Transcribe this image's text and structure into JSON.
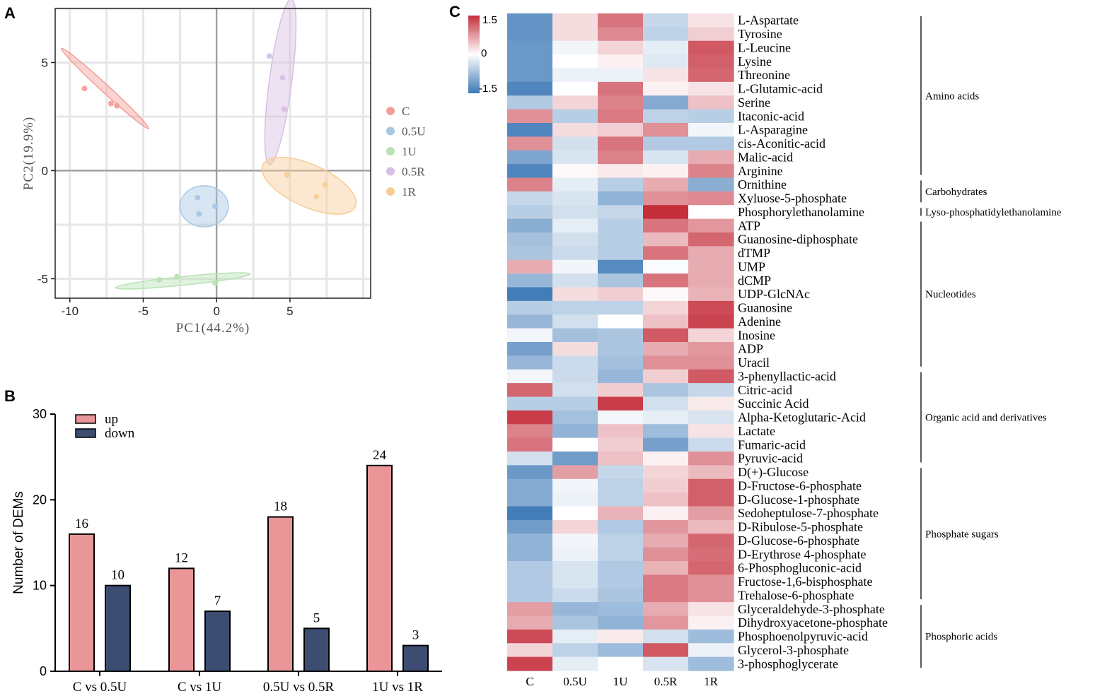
{
  "panels": {
    "a": "A",
    "b": "B",
    "c": "C"
  },
  "chart_data": [
    {
      "type": "scatter",
      "panel": "A",
      "title": "",
      "xlabel": "PC1(44.2%)",
      "ylabel": "PC2(19.9%)",
      "xlim": [
        -11,
        10.5
      ],
      "ylim": [
        -5.9,
        7.5
      ],
      "xticks": [
        -10,
        -5,
        0,
        5
      ],
      "yticks": [
        -5,
        0,
        5
      ],
      "grid": true,
      "legend": "right",
      "series": [
        {
          "name": "C",
          "color": "#f3a09a",
          "points": [
            {
              "x": -9.0,
              "y": 3.8
            },
            {
              "x": -7.2,
              "y": 3.1
            },
            {
              "x": -6.8,
              "y": 3.0
            }
          ],
          "ellipse": {
            "cx": -7.6,
            "cy": 3.8,
            "rx": 3.5,
            "ry": 0.2,
            "angle_deg": -32
          }
        },
        {
          "name": "0.5U",
          "color": "#a9c7e4",
          "points": [
            {
              "x": -1.3,
              "y": -1.25
            },
            {
              "x": -1.2,
              "y": -2.0
            },
            {
              "x": -0.1,
              "y": -1.65
            }
          ],
          "ellipse": {
            "cx": -0.85,
            "cy": -1.65,
            "rx": 1.65,
            "ry": 0.95,
            "angle_deg": 0
          }
        },
        {
          "name": "1U",
          "color": "#b9e3b3",
          "points": [
            {
              "x": -3.9,
              "y": -5.05
            },
            {
              "x": -2.7,
              "y": -4.9
            },
            {
              "x": -0.1,
              "y": -5.2
            }
          ],
          "ellipse": {
            "cx": -2.3,
            "cy": -5.1,
            "rx": 4.6,
            "ry": 0.2,
            "angle_deg": 4
          }
        },
        {
          "name": "0.5R",
          "color": "#d7bfe3",
          "points": [
            {
              "x": 3.6,
              "y": 5.3
            },
            {
              "x": 4.5,
              "y": 4.3
            },
            {
              "x": 4.6,
              "y": 2.85
            }
          ],
          "ellipse": {
            "cx": 4.35,
            "cy": 4.1,
            "rx": 3.9,
            "ry": 0.75,
            "angle_deg": 79
          }
        },
        {
          "name": "1R",
          "color": "#f8cc96",
          "points": [
            {
              "x": 4.8,
              "y": -0.2
            },
            {
              "x": 6.8,
              "y": -1.2
            },
            {
              "x": 7.4,
              "y": -0.65
            }
          ],
          "ellipse": {
            "cx": 6.3,
            "cy": -0.7,
            "rx": 3.3,
            "ry": 1.0,
            "angle_deg": -17
          }
        }
      ]
    },
    {
      "type": "bar",
      "panel": "B",
      "title": "",
      "xlabel": "",
      "ylabel": "Number of DEMs",
      "ylim": [
        0,
        30
      ],
      "yticks": [
        0,
        10,
        20,
        30
      ],
      "legend": "top-left",
      "categories": [
        "C vs 0.5U",
        "C vs 1U",
        "0.5U vs 0.5R",
        "1U vs 1R"
      ],
      "series": [
        {
          "name": "up",
          "color": "#ea9698",
          "values": [
            16,
            12,
            18,
            24
          ]
        },
        {
          "name": "down",
          "color": "#3d4d72",
          "values": [
            10,
            7,
            5,
            3
          ]
        }
      ]
    },
    {
      "type": "heatmap",
      "panel": "C",
      "title": "",
      "columns": [
        "C",
        "0.5U",
        "1U",
        "0.5R",
        "1R"
      ],
      "colorbar": {
        "min": -1.5,
        "max": 1.5,
        "ticks": [
          "1.5",
          "0",
          "-1.5"
        ],
        "low_color": "#3d78b6",
        "mid_color": "#ffffff",
        "high_color": "#c42f3c"
      },
      "rows": [
        {
          "name": "L-Aspartate",
          "values": [
            -1.2,
            0.25,
            1.0,
            -0.45,
            0.2
          ]
        },
        {
          "name": "Tyrosine",
          "values": [
            -1.2,
            0.25,
            0.85,
            -0.5,
            0.35
          ]
        },
        {
          "name": "L-Leucine",
          "values": [
            -1.15,
            -0.1,
            0.3,
            -0.2,
            1.2
          ]
        },
        {
          "name": "Lysine",
          "values": [
            -1.15,
            0.0,
            0.1,
            -0.25,
            1.15
          ]
        },
        {
          "name": "Threonine",
          "values": [
            -1.15,
            -0.15,
            -0.15,
            0.2,
            1.1
          ]
        },
        {
          "name": "L-Glutamic-acid",
          "values": [
            -1.35,
            0.0,
            1.0,
            0.1,
            0.2
          ]
        },
        {
          "name": "Serine",
          "values": [
            -0.6,
            0.3,
            0.9,
            -0.95,
            0.45
          ]
        },
        {
          "name": "Itaconic-acid",
          "values": [
            0.8,
            -0.55,
            0.95,
            -0.5,
            -0.55
          ]
        },
        {
          "name": "L-Asparagine",
          "values": [
            -1.35,
            0.25,
            0.35,
            0.8,
            -0.1
          ]
        },
        {
          "name": "cis-Aconitic-acid",
          "values": [
            0.8,
            -0.35,
            1.0,
            -0.6,
            -0.6
          ]
        },
        {
          "name": "Malic-acid",
          "values": [
            -1.0,
            -0.3,
            0.9,
            -0.3,
            0.6
          ]
        },
        {
          "name": "Arginine",
          "values": [
            -1.35,
            0.05,
            0.15,
            0.1,
            0.9
          ]
        },
        {
          "name": "Ornithine",
          "values": [
            0.9,
            -0.2,
            -0.55,
            0.6,
            -0.9
          ]
        },
        {
          "name": "Xyluose-5-phosphate",
          "values": [
            -0.45,
            -0.3,
            -0.85,
            0.8,
            0.85
          ]
        },
        {
          "name": "Phosphorylethanolamine",
          "values": [
            -0.55,
            -0.35,
            -0.45,
            1.5,
            0.0
          ]
        },
        {
          "name": "ATP",
          "values": [
            -0.9,
            -0.2,
            -0.55,
            1.0,
            0.75
          ]
        },
        {
          "name": "Guanosine-diphosphate",
          "values": [
            -0.7,
            -0.35,
            -0.55,
            0.5,
            1.1
          ]
        },
        {
          "name": "dTMP",
          "values": [
            -0.65,
            -0.4,
            -0.55,
            1.0,
            0.6
          ]
        },
        {
          "name": "UMP",
          "values": [
            0.6,
            -0.1,
            -1.3,
            -0.05,
            0.6
          ]
        },
        {
          "name": "dCMP",
          "values": [
            -0.8,
            -0.35,
            -0.65,
            1.0,
            0.6
          ]
        },
        {
          "name": "UDP-GlcNAc",
          "values": [
            -1.45,
            0.25,
            0.35,
            0.05,
            0.55
          ]
        },
        {
          "name": "Guanosine",
          "values": [
            -0.55,
            -0.5,
            -0.5,
            0.3,
            1.3
          ]
        },
        {
          "name": "Adenine",
          "values": [
            -0.8,
            -0.35,
            0.0,
            0.45,
            1.35
          ]
        },
        {
          "name": "Inosine",
          "values": [
            -0.1,
            -0.7,
            -0.65,
            1.2,
            0.3
          ]
        },
        {
          "name": "ADP",
          "values": [
            -1.05,
            0.25,
            -0.65,
            0.6,
            0.75
          ]
        },
        {
          "name": "Uracil",
          "values": [
            -0.8,
            -0.4,
            -0.7,
            0.8,
            0.8
          ]
        },
        {
          "name": "3-phenyllactic-acid",
          "values": [
            -0.1,
            -0.4,
            -0.8,
            0.35,
            1.2
          ]
        },
        {
          "name": "Citric-acid",
          "values": [
            1.1,
            -0.35,
            0.35,
            -0.65,
            -0.45
          ]
        },
        {
          "name": "Succinic Acid",
          "values": [
            -0.55,
            -0.55,
            1.4,
            -0.35,
            0.15
          ]
        },
        {
          "name": "Alpha-Ketoglutaric-Acid",
          "values": [
            1.4,
            -0.7,
            -0.1,
            -0.2,
            -0.3
          ]
        },
        {
          "name": "Lactate",
          "values": [
            0.9,
            -0.85,
            0.45,
            -0.75,
            0.2
          ]
        },
        {
          "name": "Fumaric-acid",
          "values": [
            1.0,
            0.0,
            0.35,
            -1.05,
            -0.4
          ]
        },
        {
          "name": "Pyruvic-acid",
          "values": [
            -0.35,
            -1.1,
            0.45,
            0.1,
            0.8
          ]
        },
        {
          "name": "D(+)-Glucose",
          "values": [
            -1.15,
            0.7,
            -0.45,
            0.3,
            0.5
          ]
        },
        {
          "name": "D-Fructose-6-phosphate",
          "values": [
            -0.95,
            -0.1,
            -0.5,
            0.35,
            1.15
          ]
        },
        {
          "name": "D-Glucose-1-phosphate",
          "values": [
            -0.95,
            -0.15,
            -0.5,
            0.45,
            1.15
          ]
        },
        {
          "name": "Sedoheptulose-7-phosphate",
          "values": [
            -1.45,
            0.0,
            0.55,
            0.1,
            0.7
          ]
        },
        {
          "name": "D-Ribulose-5-phosphate",
          "values": [
            -1.1,
            0.3,
            -0.6,
            0.75,
            0.5
          ]
        },
        {
          "name": "D-Glucose-6-phosphate",
          "values": [
            -0.85,
            -0.1,
            -0.5,
            0.6,
            1.1
          ]
        },
        {
          "name": "D-Erythrose 4-phosphate",
          "values": [
            -0.85,
            -0.15,
            -0.5,
            0.8,
            1.05
          ]
        },
        {
          "name": "6-Phosphogluconic-acid",
          "values": [
            -0.6,
            -0.3,
            -0.6,
            0.55,
            1.1
          ]
        },
        {
          "name": "Fructose-1,6-bisphosphate",
          "values": [
            -0.6,
            -0.3,
            -0.6,
            0.95,
            0.8
          ]
        },
        {
          "name": "Trehalose-6-phosphate",
          "values": [
            -0.6,
            -0.4,
            -0.65,
            0.95,
            0.8
          ]
        },
        {
          "name": "Glyceraldehyde-3-phosphate",
          "values": [
            0.7,
            -0.8,
            -0.75,
            0.6,
            0.2
          ]
        },
        {
          "name": "Dihydroxyacetone-phosphate",
          "values": [
            0.6,
            -0.65,
            -0.85,
            0.75,
            0.1
          ]
        },
        {
          "name": "Phosphoenolpyruvic-acid",
          "values": [
            1.3,
            -0.2,
            0.15,
            -0.35,
            -0.75
          ]
        },
        {
          "name": "Glycerol-3-phosphate",
          "values": [
            0.3,
            -0.5,
            -0.75,
            1.2,
            -0.15
          ]
        },
        {
          "name": "3-phosphoglycerate",
          "values": [
            1.35,
            -0.2,
            0.0,
            -0.3,
            -0.75
          ]
        }
      ],
      "groups": [
        {
          "label": "Amino acids",
          "from": 0,
          "to": 11
        },
        {
          "label": "Carbohydrates",
          "from": 12,
          "to": 13
        },
        {
          "label": "Lyso-phosphatidylethanolamine",
          "from": 14,
          "to": 14
        },
        {
          "label": "Nucleotides",
          "from": 15,
          "to": 25
        },
        {
          "label": "Organic acid and derivatives",
          "from": 26,
          "to": 32
        },
        {
          "label": "Phosphate sugars",
          "from": 33,
          "to": 42
        },
        {
          "label": "Phosphoric acids",
          "from": 43,
          "to": 47
        }
      ]
    }
  ]
}
